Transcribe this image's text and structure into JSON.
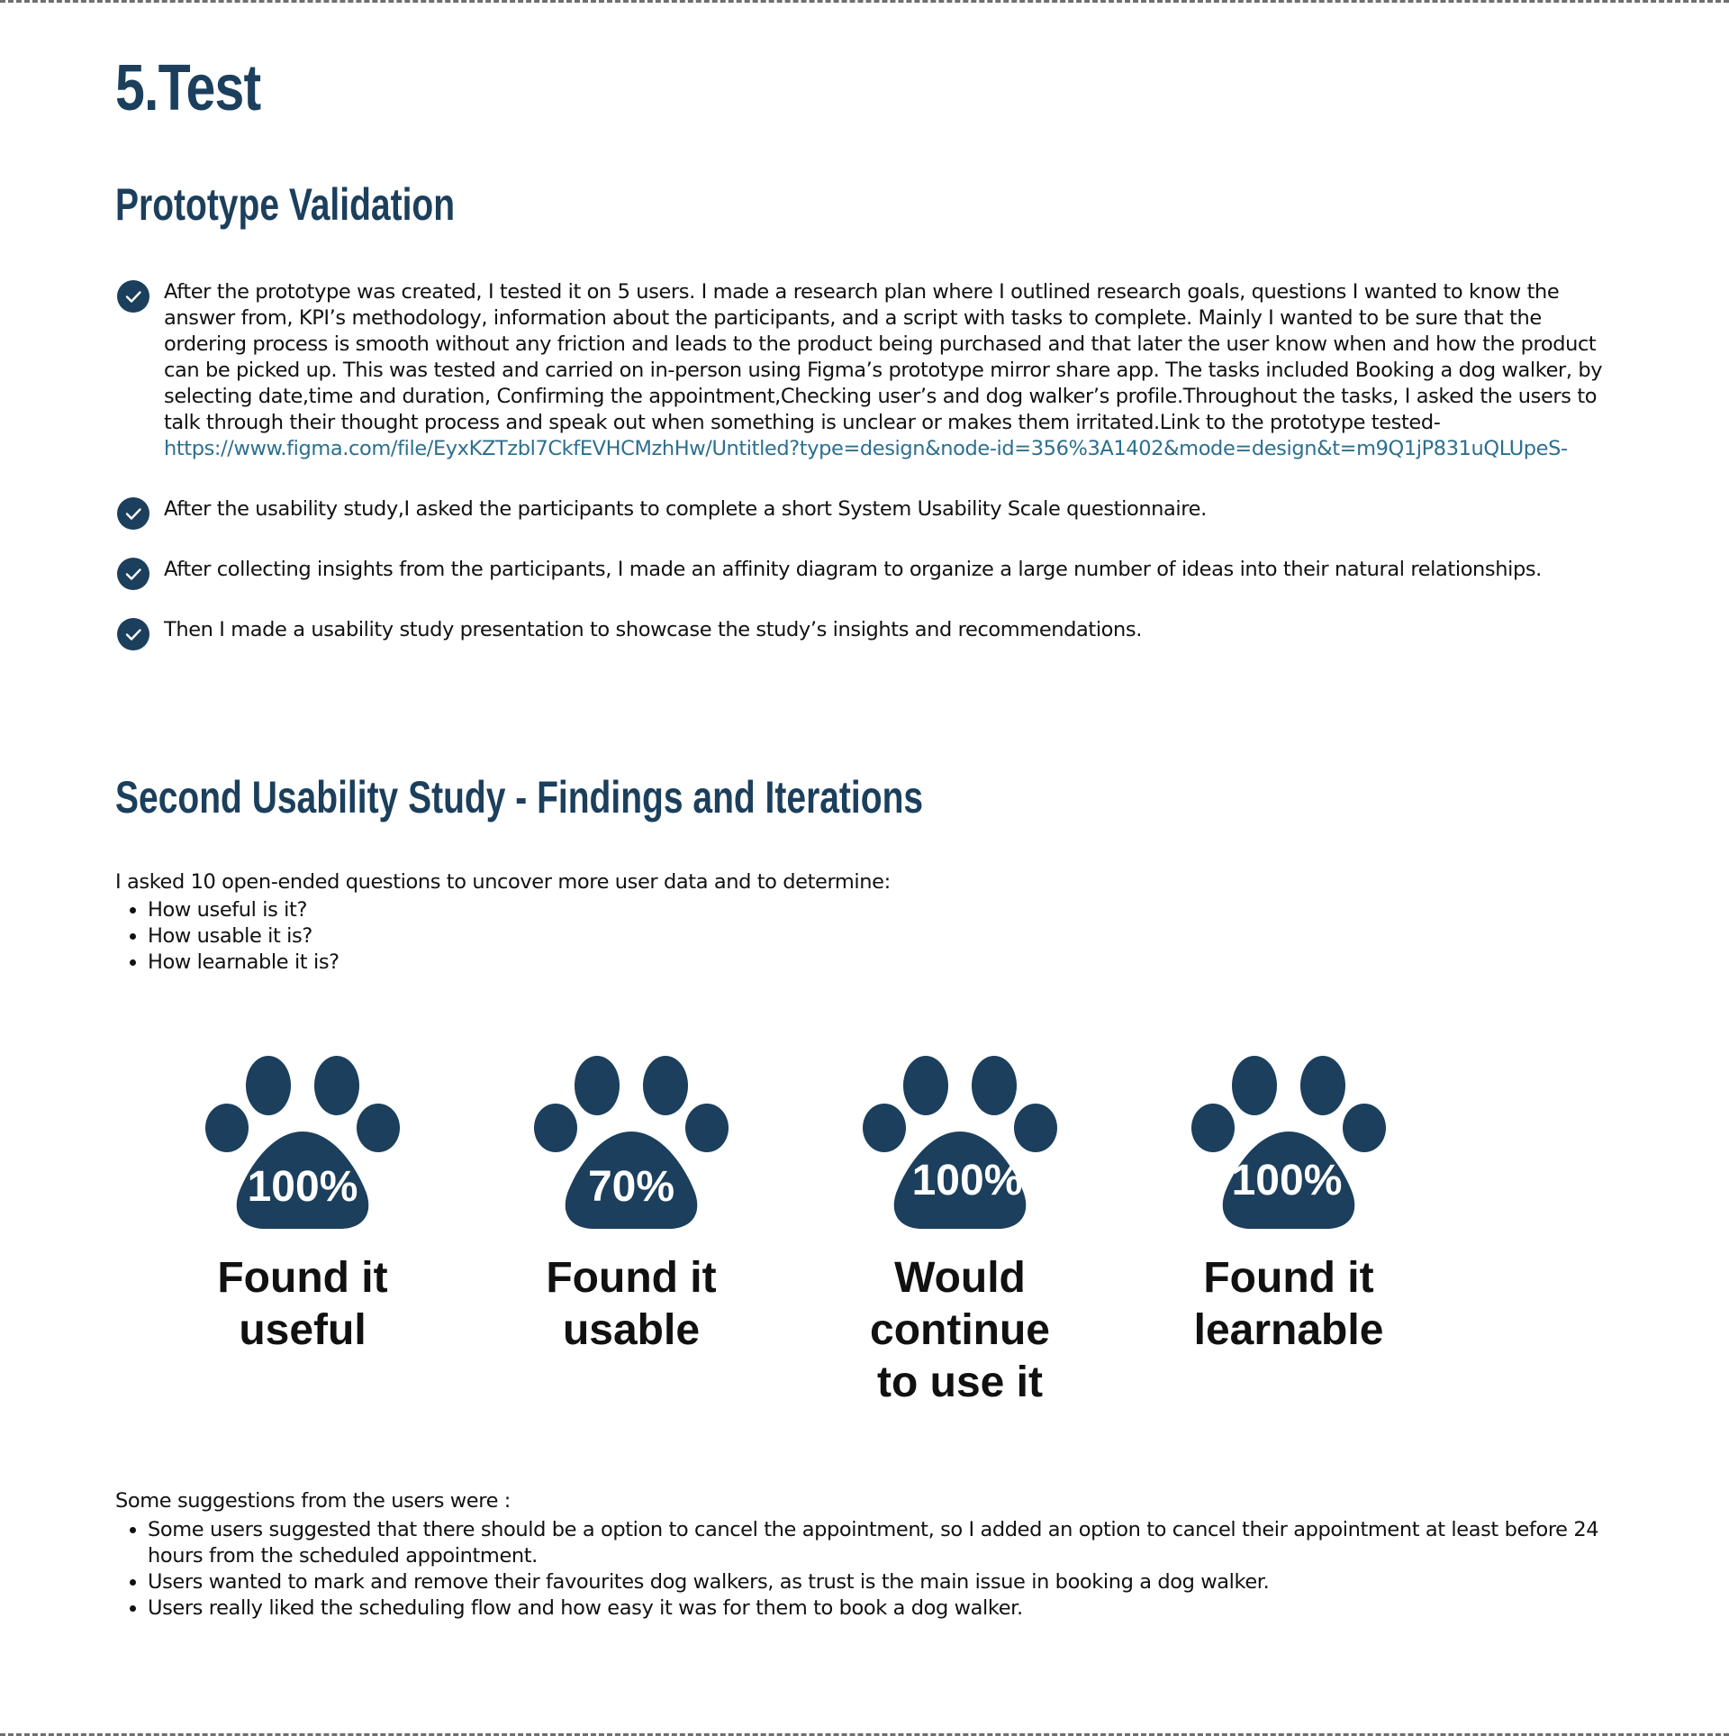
{
  "page": {
    "title": "5.Test",
    "accent_color": "#1b3f5c",
    "link_color": "#2c6f8e"
  },
  "prototype_validation": {
    "heading": "Prototype Validation",
    "items": [
      {
        "text": "After the prototype was created, I tested it on 5 users. I made a research plan where I outlined research goals, questions I wanted to know the answer from, KPI’s methodology, information about the participants, and a script with tasks to complete. Mainly I wanted to be sure that the ordering process is smooth without any friction and leads to the product being purchased and that later the user know when and how the product can be picked up. This was tested and carried on in-person using Figma’s prototype mirror share app. The tasks included Booking a dog walker, by selecting date,time and duration, Confirming the appointment,Checking user’s and dog walker’s profile.Throughout the tasks, I asked the users to talk through their thought process and speak out when something is unclear or makes them irritated.Link to the prototype tested-",
        "link": "https://www.figma.com/file/EyxKZTzbl7CkfEVHCMzhHw/Untitled?type=design&node-id=356%3A1402&mode=design&t=m9Q1jP831uQLUpeS-"
      },
      {
        "text": "After the  usability study,I asked the participants to complete a short System Usability Scale questionnaire."
      },
      {
        "text": "After collecting insights from the participants, I made an affinity diagram to organize a large number of ideas into their natural relationships."
      },
      {
        "text": "Then I made a usability study presentation to showcase the study’s insights and recommendations."
      }
    ],
    "check_icon": "check-circle-icon"
  },
  "second_study": {
    "heading": "Second Usability Study - Findings and Iterations",
    "intro": "I asked 10 open-ended questions to uncover more user data and to determine:",
    "questions": [
      "How useful is it?",
      "How usable it is?",
      "How learnable it is?"
    ],
    "stats_icon": "paw-print-icon",
    "stats": [
      {
        "value": "100%",
        "caption_lines": [
          "Found it",
          "useful"
        ]
      },
      {
        "value": "70%",
        "caption_lines": [
          "Found it",
          "usable"
        ]
      },
      {
        "value": "100%",
        "caption_lines": [
          "Would",
          "continue",
          "to use it"
        ]
      },
      {
        "value": "100%",
        "caption_lines": [
          "Found it",
          "learnable"
        ]
      }
    ],
    "suggestions_intro": "Some suggestions from the users were :",
    "suggestions": [
      "Some users suggested that there should be a option to cancel the appointment, so I added an option to cancel their appointment at least before 24 hours from the scheduled appointment.",
      "Users wanted to mark  and remove their favourites dog walkers, as trust is the main issue in booking a dog walker.",
      "Users really liked the scheduling flow and how easy it was for them to book a dog walker."
    ]
  }
}
